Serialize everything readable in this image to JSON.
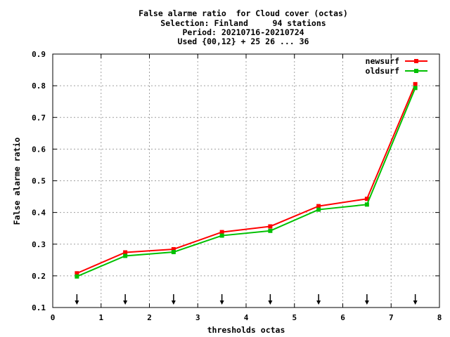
{
  "chart_data": {
    "type": "line",
    "title_lines": [
      "False alarme ratio  for Cloud cover (octas)",
      "Selection: Finland     94 stations",
      "Period: 20210716-20210724",
      "Used {00,12} + 25 26 ... 36"
    ],
    "xlabel": "thresholds octas",
    "ylabel": "False alarme ratio",
    "xlim": [
      0,
      8
    ],
    "ylim": [
      0.1,
      0.9
    ],
    "xticks": [
      0,
      1,
      2,
      3,
      4,
      5,
      6,
      7,
      8
    ],
    "yticks": [
      "0.1",
      "0.2",
      "0.3",
      "0.4",
      "0.5",
      "0.6",
      "0.7",
      "0.8",
      "0.9"
    ],
    "grid": true,
    "legend_position": "top-right",
    "x": [
      0.5,
      1.5,
      2.5,
      3.5,
      4.5,
      5.5,
      6.5,
      7.5
    ],
    "series": [
      {
        "name": "newsurf",
        "color": "#ff0000",
        "values": [
          0.208,
          0.274,
          0.284,
          0.338,
          0.356,
          0.42,
          0.443,
          0.805
        ]
      },
      {
        "name": "oldsurf",
        "color": "#00c000",
        "values": [
          0.198,
          0.263,
          0.275,
          0.327,
          0.342,
          0.409,
          0.425,
          0.793
        ]
      }
    ],
    "arrow_markers_x": [
      0.5,
      1.5,
      2.5,
      3.5,
      4.5,
      5.5,
      6.5,
      7.5
    ]
  }
}
